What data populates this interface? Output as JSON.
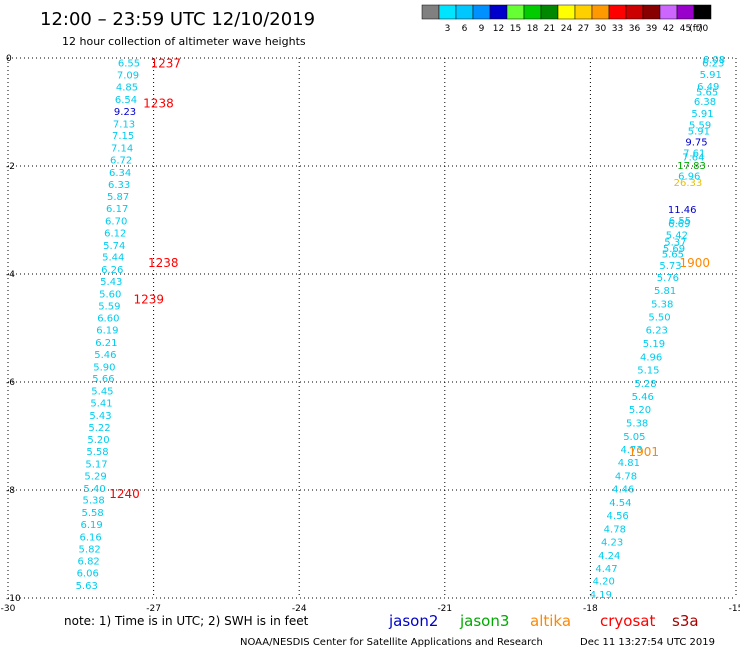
{
  "header": {
    "title": "12:00 – 23:59 UTC 12/10/2019",
    "subtitle": "12 hour collection of altimeter wave heights"
  },
  "colorbar": {
    "unit": "(ft)",
    "bins": [
      {
        "label": "",
        "color": "#808080"
      },
      {
        "label": "3",
        "color": "#00e5ff"
      },
      {
        "label": "6",
        "color": "#00c8ff"
      },
      {
        "label": "9",
        "color": "#0090ff"
      },
      {
        "label": "12",
        "color": "#0000cc"
      },
      {
        "label": "15",
        "color": "#66ff33"
      },
      {
        "label": "18",
        "color": "#00cc00"
      },
      {
        "label": "21",
        "color": "#008800"
      },
      {
        "label": "24",
        "color": "#ffff00"
      },
      {
        "label": "27",
        "color": "#ffd000"
      },
      {
        "label": "30",
        "color": "#ff9900"
      },
      {
        "label": "33",
        "color": "#ff0000"
      },
      {
        "label": "36",
        "color": "#cc0000"
      },
      {
        "label": "39",
        "color": "#880000"
      },
      {
        "label": "42",
        "color": "#cc66ff"
      },
      {
        "label": "45",
        "color": "#9900cc"
      },
      {
        "label": "70",
        "color": "#000000"
      }
    ]
  },
  "chart_data": {
    "type": "scatter",
    "xlim": [
      -30,
      -15
    ],
    "ylim": [
      -10,
      0
    ],
    "xticks": [
      "-30",
      "-27",
      "-24",
      "-21",
      "-18",
      "-15"
    ],
    "yticks": [
      "-10",
      "-8",
      "-6",
      "-4",
      "-2",
      "0"
    ],
    "grid": true,
    "colors": {
      "cyan": "#00ccee",
      "blue": "#0000cc",
      "green": "#00aa00",
      "yellow": "#e8c000",
      "orange": "#ff8800",
      "red": "#ff0000"
    },
    "tracks": [
      {
        "x_top": -27.5,
        "x_bottom": -28.4,
        "values": [
          {
            "y": -0.08,
            "text": "6.55"
          },
          {
            "y": -0.31,
            "text": "7.09"
          },
          {
            "y": -0.53,
            "text": "4.85"
          },
          {
            "y": -0.76,
            "text": "6.54"
          },
          {
            "y": -0.98,
            "text": "9.23",
            "color": "blue"
          },
          {
            "y": -1.21,
            "text": "7.13"
          },
          {
            "y": -1.43,
            "text": "7.15"
          },
          {
            "y": -1.66,
            "text": "7.14"
          },
          {
            "y": -1.88,
            "text": "6.72"
          },
          {
            "y": -2.11,
            "text": "6.34"
          },
          {
            "y": -2.33,
            "text": "6.33"
          },
          {
            "y": -2.56,
            "text": "5.87"
          },
          {
            "y": -2.78,
            "text": "6.17"
          },
          {
            "y": -3.01,
            "text": "6.70"
          },
          {
            "y": -3.23,
            "text": "6.12"
          },
          {
            "y": -3.46,
            "text": "5.74"
          },
          {
            "y": -3.68,
            "text": "5.44"
          },
          {
            "y": -3.91,
            "text": "6.26"
          },
          {
            "y": -4.13,
            "text": "5.43"
          },
          {
            "y": -4.36,
            "text": "5.60"
          },
          {
            "y": -4.58,
            "text": "5.59"
          },
          {
            "y": -4.81,
            "text": "6.60"
          },
          {
            "y": -5.03,
            "text": "6.19"
          },
          {
            "y": -5.26,
            "text": "6.21"
          },
          {
            "y": -5.48,
            "text": "5.46"
          },
          {
            "y": -5.71,
            "text": "5.90"
          },
          {
            "y": -5.93,
            "text": "5.66"
          },
          {
            "y": -6.16,
            "text": "5.45"
          },
          {
            "y": -6.38,
            "text": "5.41"
          },
          {
            "y": -6.61,
            "text": "5.43"
          },
          {
            "y": -6.83,
            "text": "5.22"
          },
          {
            "y": -7.06,
            "text": "5.20"
          },
          {
            "y": -7.28,
            "text": "5.58"
          },
          {
            "y": -7.51,
            "text": "5.17"
          },
          {
            "y": -7.73,
            "text": "5.29"
          },
          {
            "y": -7.96,
            "text": "5.40"
          },
          {
            "y": -8.18,
            "text": "5.38"
          },
          {
            "y": -8.41,
            "text": "5.58"
          },
          {
            "y": -8.63,
            "text": "6.19"
          },
          {
            "y": -8.86,
            "text": "6.16"
          },
          {
            "y": -9.08,
            "text": "5.82"
          },
          {
            "y": -9.31,
            "text": "6.82"
          },
          {
            "y": -9.53,
            "text": "6.06"
          },
          {
            "y": -9.76,
            "text": "5.63"
          }
        ]
      },
      {
        "x_top": -15.45,
        "x_bottom": -17.8,
        "values": [
          {
            "y": -0.02,
            "text": "6.08"
          },
          {
            "y": -0.08,
            "text": "6.23"
          },
          {
            "y": -0.3,
            "text": "5.91"
          },
          {
            "y": -0.52,
            "text": "6.49"
          },
          {
            "y": -0.62,
            "text": "5.65"
          },
          {
            "y": -0.8,
            "text": "6.38"
          },
          {
            "y": -1.02,
            "text": "5.91"
          },
          {
            "y": -1.23,
            "text": "5.59"
          },
          {
            "y": -1.34,
            "text": "5.91"
          },
          {
            "y": -1.55,
            "text": "9.75",
            "color": "blue"
          },
          {
            "y": -1.75,
            "text": "7.61"
          },
          {
            "y": -1.82,
            "text": "7.64"
          },
          {
            "y": -1.98,
            "text": "17.83",
            "color": "green"
          },
          {
            "y": -2.18,
            "text": "6.96"
          },
          {
            "y": -2.3,
            "text": "26.33",
            "color": "yellow"
          },
          {
            "y": -2.8,
            "text": "11.46",
            "color": "blue"
          },
          {
            "y": -3.0,
            "text": "6.55"
          },
          {
            "y": -3.06,
            "text": "6.69"
          },
          {
            "y": -3.27,
            "text": "5.42"
          },
          {
            "y": -3.4,
            "text": "5.37"
          },
          {
            "y": -3.52,
            "text": "5.69"
          },
          {
            "y": -3.62,
            "text": "5.65"
          },
          {
            "y": -3.83,
            "text": "5.73"
          },
          {
            "y": -4.06,
            "text": "5.76"
          },
          {
            "y": -4.3,
            "text": "5.81"
          },
          {
            "y": -4.55,
            "text": "5.38"
          },
          {
            "y": -4.79,
            "text": "5.50"
          },
          {
            "y": -5.03,
            "text": "6.23"
          },
          {
            "y": -5.28,
            "text": "5.19"
          },
          {
            "y": -5.53,
            "text": "4.96"
          },
          {
            "y": -5.77,
            "text": "5.15"
          },
          {
            "y": -6.02,
            "text": "5.28"
          },
          {
            "y": -6.26,
            "text": "5.46"
          },
          {
            "y": -6.5,
            "text": "5.20"
          },
          {
            "y": -6.75,
            "text": "5.38"
          },
          {
            "y": -7.0,
            "text": "5.05"
          },
          {
            "y": -7.24,
            "text": "4.73"
          },
          {
            "y": -7.48,
            "text": "4.81"
          },
          {
            "y": -7.73,
            "text": "4.78"
          },
          {
            "y": -7.97,
            "text": "4.46"
          },
          {
            "y": -8.22,
            "text": "4.54"
          },
          {
            "y": -8.46,
            "text": "4.56"
          },
          {
            "y": -8.71,
            "text": "4.78"
          },
          {
            "y": -8.95,
            "text": "4.23"
          },
          {
            "y": -9.2,
            "text": "4.24"
          },
          {
            "y": -9.44,
            "text": "4.47"
          },
          {
            "y": -9.68,
            "text": "4.20"
          },
          {
            "y": -9.93,
            "text": "4.19"
          }
        ]
      }
    ],
    "time_labels": [
      {
        "x": -26.75,
        "y": -0.08,
        "text": "1237",
        "color": "red"
      },
      {
        "x": -26.9,
        "y": -0.82,
        "text": "1238",
        "color": "red"
      },
      {
        "x": -26.8,
        "y": -3.78,
        "text": "1238",
        "color": "red"
      },
      {
        "x": -27.1,
        "y": -4.45,
        "text": "1239",
        "color": "red"
      },
      {
        "x": -27.6,
        "y": -8.06,
        "text": "1240",
        "color": "red"
      },
      {
        "x": -15.85,
        "y": -3.78,
        "text": "1900",
        "color": "orange"
      },
      {
        "x": -16.9,
        "y": -7.28,
        "text": "1901",
        "color": "orange"
      }
    ]
  },
  "footer": {
    "note": "note:  1) Time is in UTC;  2) SWH is in feet",
    "legend": [
      {
        "label": "jason2",
        "color": "#0000cc"
      },
      {
        "label": "jason3",
        "color": "#00aa00"
      },
      {
        "label": "altika",
        "color": "#ff8800"
      },
      {
        "label": "cryosat",
        "color": "#ff0000"
      },
      {
        "label": "s3a",
        "color": "#aa0000"
      }
    ],
    "credit": "NOAA/NESDIS Center for Satellite Applications and Research",
    "timestamp": "Dec 11 13:27:54 UTC 2019"
  }
}
